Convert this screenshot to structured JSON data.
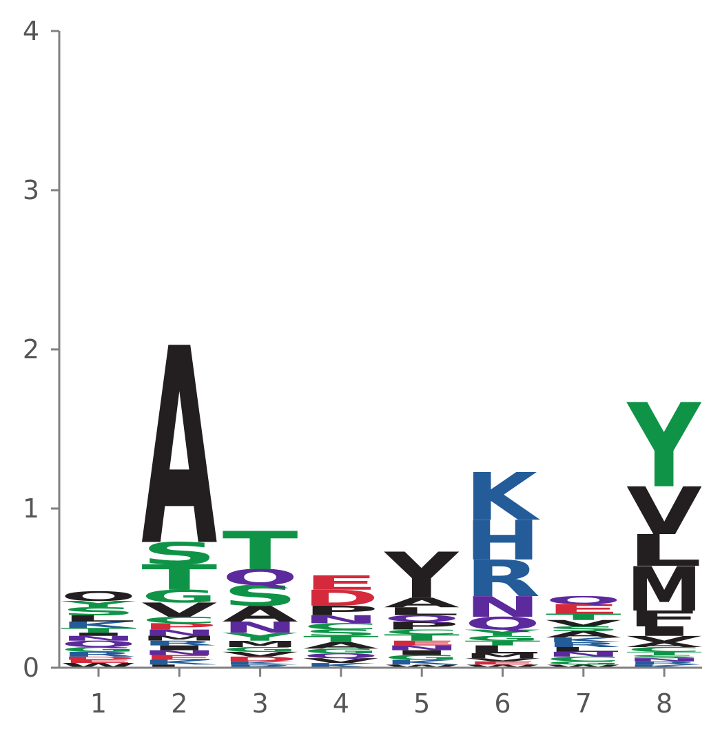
{
  "chart_data": {
    "type": "sequence-logo",
    "title": "",
    "xlabel": "",
    "ylabel": "",
    "ylim": [
      0,
      4
    ],
    "y_ticks": [
      "0",
      "1",
      "2",
      "3",
      "4"
    ],
    "x_ticks": [
      "1",
      "2",
      "3",
      "4",
      "5",
      "6",
      "7",
      "8"
    ],
    "colors": {
      "black": "#231f20",
      "green": "#0f9447",
      "blue": "#235c99",
      "purple": "#5c2a9d",
      "red": "#d42a3c"
    },
    "positions": [
      {
        "pos": "1",
        "stack": [
          {
            "letter": "W",
            "color": "black",
            "value": 0.03
          },
          {
            "letter": "E",
            "color": "red",
            "value": 0.02
          },
          {
            "letter": "D",
            "color": "red",
            "value": 0.02
          },
          {
            "letter": "R",
            "color": "blue",
            "value": 0.03
          },
          {
            "letter": "G",
            "color": "green",
            "value": 0.03
          },
          {
            "letter": "Q",
            "color": "purple",
            "value": 0.04
          },
          {
            "letter": "N",
            "color": "purple",
            "value": 0.03
          },
          {
            "letter": "I",
            "color": "black",
            "value": 0.02
          },
          {
            "letter": "T",
            "color": "green",
            "value": 0.03
          },
          {
            "letter": "K",
            "color": "blue",
            "value": 0.04
          },
          {
            "letter": "L",
            "color": "black",
            "value": 0.04
          },
          {
            "letter": "S",
            "color": "green",
            "value": 0.05
          },
          {
            "letter": "Y",
            "color": "green",
            "value": 0.04
          },
          {
            "letter": "O",
            "color": "black",
            "value": 0.06
          }
        ]
      },
      {
        "pos": "2",
        "stack": [
          {
            "letter": "L",
            "color": "black",
            "value": 0.02
          },
          {
            "letter": "K",
            "color": "blue",
            "value": 0.03
          },
          {
            "letter": "E",
            "color": "red",
            "value": 0.03
          },
          {
            "letter": "N",
            "color": "purple",
            "value": 0.03
          },
          {
            "letter": "I",
            "color": "black",
            "value": 0.03
          },
          {
            "letter": "R",
            "color": "blue",
            "value": 0.03
          },
          {
            "letter": "M",
            "color": "black",
            "value": 0.03
          },
          {
            "letter": "N",
            "color": "purple",
            "value": 0.04
          },
          {
            "letter": "P",
            "color": "red",
            "value": 0.04
          },
          {
            "letter": "C",
            "color": "green",
            "value": 0.04
          },
          {
            "letter": "V",
            "color": "black",
            "value": 0.09
          },
          {
            "letter": "G",
            "color": "green",
            "value": 0.08
          },
          {
            "letter": "T",
            "color": "green",
            "value": 0.16
          },
          {
            "letter": "S",
            "color": "green",
            "value": 0.14
          },
          {
            "letter": "A",
            "color": "black",
            "value": 1.24
          }
        ]
      },
      {
        "pos": "3",
        "stack": [
          {
            "letter": "R",
            "color": "blue",
            "value": 0.02
          },
          {
            "letter": "K",
            "color": "blue",
            "value": 0.02
          },
          {
            "letter": "D",
            "color": "red",
            "value": 0.03
          },
          {
            "letter": "V",
            "color": "black",
            "value": 0.03
          },
          {
            "letter": "G",
            "color": "green",
            "value": 0.03
          },
          {
            "letter": "M",
            "color": "black",
            "value": 0.04
          },
          {
            "letter": "Y",
            "color": "green",
            "value": 0.05
          },
          {
            "letter": "N",
            "color": "purple",
            "value": 0.07
          },
          {
            "letter": "A",
            "color": "black",
            "value": 0.1
          },
          {
            "letter": "S",
            "color": "green",
            "value": 0.13
          },
          {
            "letter": "Q",
            "color": "purple",
            "value": 0.1
          },
          {
            "letter": "T",
            "color": "green",
            "value": 0.24
          }
        ]
      },
      {
        "pos": "4",
        "stack": [
          {
            "letter": "K",
            "color": "blue",
            "value": 0.03
          },
          {
            "letter": "V",
            "color": "black",
            "value": 0.03
          },
          {
            "letter": "Q",
            "color": "purple",
            "value": 0.03
          },
          {
            "letter": "G",
            "color": "green",
            "value": 0.03
          },
          {
            "letter": "A",
            "color": "black",
            "value": 0.04
          },
          {
            "letter": "T",
            "color": "green",
            "value": 0.04
          },
          {
            "letter": "S",
            "color": "green",
            "value": 0.04
          },
          {
            "letter": "C",
            "color": "green",
            "value": 0.04
          },
          {
            "letter": "N",
            "color": "purple",
            "value": 0.05
          },
          {
            "letter": "P",
            "color": "black",
            "value": 0.06
          },
          {
            "letter": "D",
            "color": "red",
            "value": 0.1
          },
          {
            "letter": "E",
            "color": "red",
            "value": 0.09
          }
        ]
      },
      {
        "pos": "5",
        "stack": [
          {
            "letter": "W",
            "color": "black",
            "value": 0.02
          },
          {
            "letter": "K",
            "color": "blue",
            "value": 0.03
          },
          {
            "letter": "G",
            "color": "green",
            "value": 0.03
          },
          {
            "letter": "I",
            "color": "black",
            "value": 0.03
          },
          {
            "letter": "N",
            "color": "purple",
            "value": 0.03
          },
          {
            "letter": "E",
            "color": "red",
            "value": 0.03
          },
          {
            "letter": "T",
            "color": "green",
            "value": 0.04
          },
          {
            "letter": "C",
            "color": "green",
            "value": 0.03
          },
          {
            "letter": "P",
            "color": "black",
            "value": 0.05
          },
          {
            "letter": "Q",
            "color": "purple",
            "value": 0.04
          },
          {
            "letter": "L",
            "color": "black",
            "value": 0.05
          },
          {
            "letter": "A",
            "color": "black",
            "value": 0.06
          },
          {
            "letter": "Y",
            "color": "black",
            "value": 0.29
          }
        ]
      },
      {
        "pos": "6",
        "stack": [
          {
            "letter": "W",
            "color": "black",
            "value": 0.02
          },
          {
            "letter": "E",
            "color": "red",
            "value": 0.02
          },
          {
            "letter": "V",
            "color": "black",
            "value": 0.02
          },
          {
            "letter": "M",
            "color": "black",
            "value": 0.03
          },
          {
            "letter": "L",
            "color": "black",
            "value": 0.05
          },
          {
            "letter": "T",
            "color": "green",
            "value": 0.03
          },
          {
            "letter": "G",
            "color": "green",
            "value": 0.03
          },
          {
            "letter": "Y",
            "color": "green",
            "value": 0.04
          },
          {
            "letter": "Q",
            "color": "purple",
            "value": 0.08
          },
          {
            "letter": "N",
            "color": "purple",
            "value": 0.13
          },
          {
            "letter": "R",
            "color": "blue",
            "value": 0.23
          },
          {
            "letter": "H",
            "color": "blue",
            "value": 0.25
          },
          {
            "letter": "K",
            "color": "blue",
            "value": 0.3
          }
        ]
      },
      {
        "pos": "7",
        "stack": [
          {
            "letter": "W",
            "color": "black",
            "value": 0.02
          },
          {
            "letter": "G",
            "color": "green",
            "value": 0.02
          },
          {
            "letter": "C",
            "color": "green",
            "value": 0.03
          },
          {
            "letter": "N",
            "color": "purple",
            "value": 0.03
          },
          {
            "letter": "L",
            "color": "black",
            "value": 0.03
          },
          {
            "letter": "R",
            "color": "blue",
            "value": 0.03
          },
          {
            "letter": "K",
            "color": "blue",
            "value": 0.03
          },
          {
            "letter": "A",
            "color": "black",
            "value": 0.04
          },
          {
            "letter": "S",
            "color": "green",
            "value": 0.03
          },
          {
            "letter": "V",
            "color": "black",
            "value": 0.04
          },
          {
            "letter": "T",
            "color": "green",
            "value": 0.04
          },
          {
            "letter": "E",
            "color": "red",
            "value": 0.06
          },
          {
            "letter": "Q",
            "color": "purple",
            "value": 0.05
          }
        ]
      },
      {
        "pos": "8",
        "stack": [
          {
            "letter": "K",
            "color": "blue",
            "value": 0.02
          },
          {
            "letter": "R",
            "color": "blue",
            "value": 0.02
          },
          {
            "letter": "N",
            "color": "purple",
            "value": 0.02
          },
          {
            "letter": "S",
            "color": "green",
            "value": 0.02
          },
          {
            "letter": "T",
            "color": "green",
            "value": 0.02
          },
          {
            "letter": "C",
            "color": "green",
            "value": 0.03
          },
          {
            "letter": "A",
            "color": "black",
            "value": 0.03
          },
          {
            "letter": "V",
            "color": "black",
            "value": 0.04
          },
          {
            "letter": "I",
            "color": "black",
            "value": 0.06
          },
          {
            "letter": "F",
            "color": "black",
            "value": 0.1
          },
          {
            "letter": "M",
            "color": "black",
            "value": 0.28
          },
          {
            "letter": "L",
            "color": "black",
            "value": 0.2
          },
          {
            "letter": "V",
            "color": "black",
            "value": 0.3
          },
          {
            "letter": "Y",
            "color": "green",
            "value": 0.53
          }
        ]
      }
    ]
  }
}
